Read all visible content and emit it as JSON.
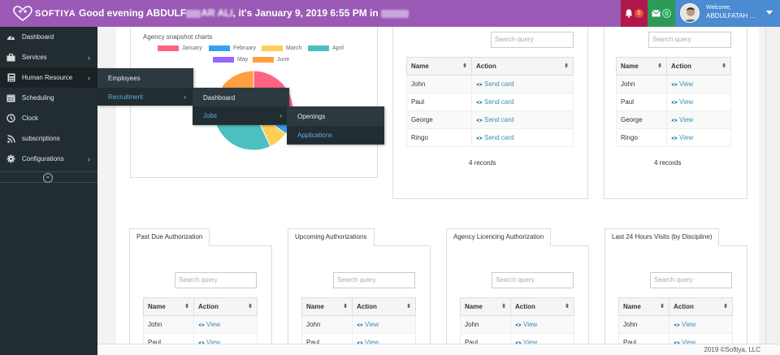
{
  "topbar": {
    "logo_text": "SOFTIYA",
    "greeting_prefix": "Good evening ABDULF",
    "greeting_mid": "AR ALI",
    "greeting_suffix": ", it's January 9, 2019 6:55 PM  in",
    "bell_count": "0",
    "mail_count": "0",
    "welcome_label": "Welcome,",
    "user_name": "ABDULFATAH ..."
  },
  "sidebar": {
    "items": [
      {
        "label": "Dashboard",
        "icon": "dashboard-icon"
      },
      {
        "label": "Services",
        "icon": "briefcase-icon"
      },
      {
        "label": "Human Resource",
        "icon": "calculator-icon"
      },
      {
        "label": "Scheduling",
        "icon": "calendar-icon"
      },
      {
        "label": "Clock",
        "icon": "clock-icon"
      },
      {
        "label": "subscriptions",
        "icon": "rss-icon"
      },
      {
        "label": "Configurations",
        "icon": "cog-icon"
      }
    ],
    "collapse_symbol": "«"
  },
  "flyout_hr": {
    "items": [
      {
        "label": "Employees"
      },
      {
        "label": "Recruitment"
      }
    ]
  },
  "flyout_recruitment": {
    "items": [
      {
        "label": "Dashboard"
      },
      {
        "label": "Jobs"
      }
    ]
  },
  "flyout_jobs": {
    "items": [
      {
        "label": "Openings"
      },
      {
        "label": "Applications"
      }
    ]
  },
  "chart_data": {
    "type": "pie",
    "title": "Agency snapshot charts",
    "categories": [
      "January",
      "February",
      "March",
      "April",
      "May",
      "June"
    ],
    "colors": [
      "#ff6384",
      "#36a2eb",
      "#ffce56",
      "#4bc0c0",
      "#9966ff",
      "#ff9f40"
    ],
    "values": [
      30,
      5,
      8,
      40,
      2,
      15
    ]
  },
  "panel_send": {
    "search_placeholder": "Search query",
    "headers": [
      "Name",
      "Action"
    ],
    "rows": [
      {
        "name": "John",
        "action": "Send card"
      },
      {
        "name": "Paul",
        "action": "Send card"
      },
      {
        "name": "George",
        "action": "Send card"
      },
      {
        "name": "Ringo",
        "action": "Send card"
      }
    ],
    "records": "4 records"
  },
  "panel_view": {
    "search_placeholder": "Search query",
    "headers": [
      "Name",
      "Action"
    ],
    "rows": [
      {
        "name": "John",
        "action": "View"
      },
      {
        "name": "Paul",
        "action": "View"
      },
      {
        "name": "George",
        "action": "View"
      },
      {
        "name": "Ringo",
        "action": "View"
      }
    ],
    "records": "4 records"
  },
  "bottom_panels": [
    {
      "tab": "Past Due Authorization",
      "search_placeholder": "Search query",
      "headers": [
        "Name",
        "Action"
      ],
      "rows": [
        {
          "name": "John",
          "action": "View"
        },
        {
          "name": "Paul",
          "action": "View"
        }
      ]
    },
    {
      "tab": "Upcoming Authorizations",
      "search_placeholder": "Search query",
      "headers": [
        "Name",
        "Action"
      ],
      "rows": [
        {
          "name": "John",
          "action": "View"
        },
        {
          "name": "Paul",
          "action": "View"
        }
      ]
    },
    {
      "tab": "Agency Licencing Authorization",
      "search_placeholder": "Search query",
      "headers": [
        "Name",
        "Action"
      ],
      "rows": [
        {
          "name": "John",
          "action": "View"
        },
        {
          "name": "Paul",
          "action": "View"
        }
      ]
    },
    {
      "tab": "Last 24 Hours Visits (by Discipline)",
      "search_placeholder": "Search query",
      "headers": [
        "Name",
        "Action"
      ],
      "rows": [
        {
          "name": "John",
          "action": "View"
        },
        {
          "name": "Paul",
          "action": "View"
        }
      ]
    }
  ],
  "footer": {
    "text": "2019 ©Softiya, LLC"
  }
}
